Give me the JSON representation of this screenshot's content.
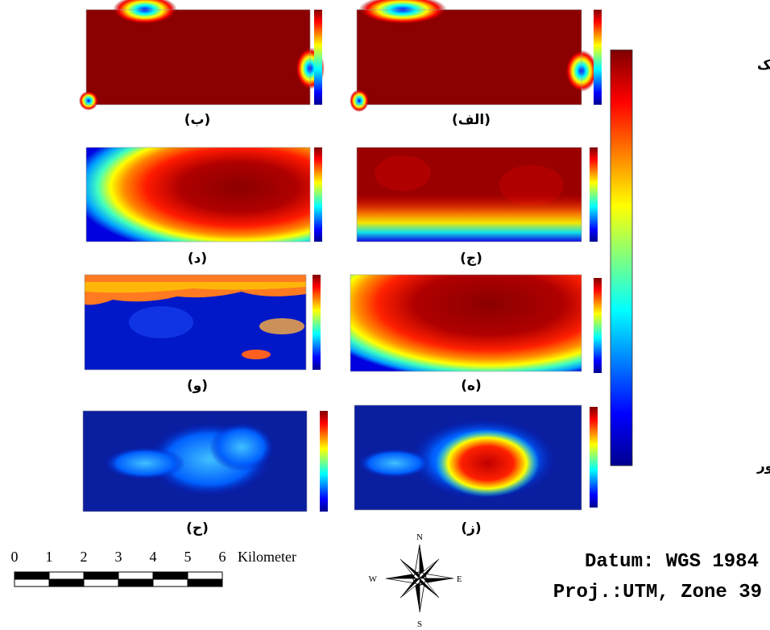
{
  "panel_labels": [
    "(الف)",
    "(ب)",
    "(ج)",
    "(د)",
    "(ه)",
    "(و)",
    "(ز)",
    "(ح)"
  ],
  "legend": {
    "high": "بالا/ نزدیک",
    "low": "پایین/ دور"
  },
  "scale_bar": {
    "ticks": [
      0,
      1,
      2,
      3,
      4,
      5,
      6
    ],
    "unit": "Kilometer"
  },
  "compass": {
    "n": "N",
    "s": "S",
    "e": "E",
    "w": "W"
  },
  "projection": {
    "datum": "Datum: WGS 1984",
    "proj": "Proj.:UTM, Zone 39"
  }
}
